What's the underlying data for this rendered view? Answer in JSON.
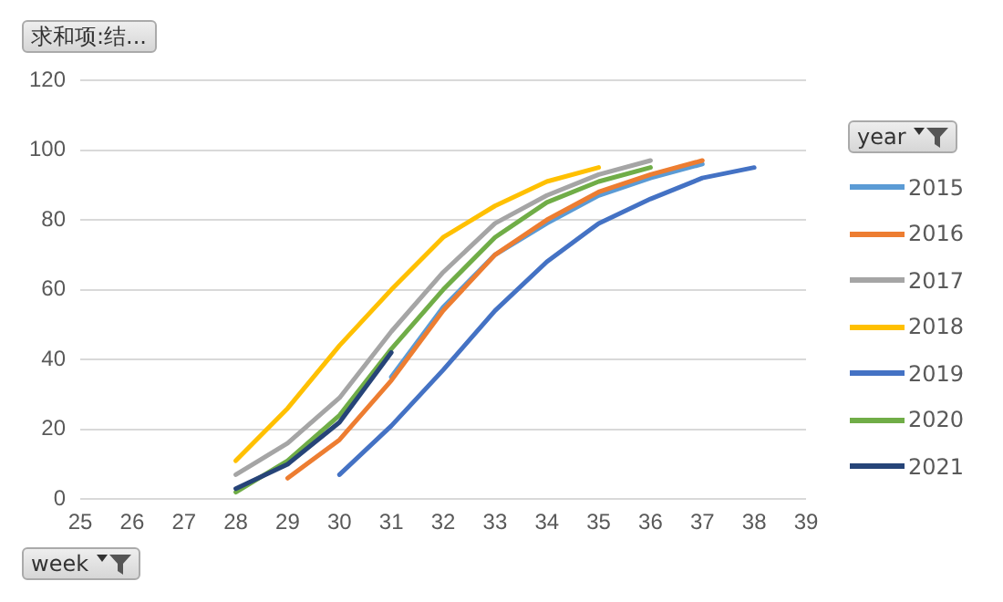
{
  "chart_data": {
    "type": "line",
    "ylabel": "求和项:结...",
    "xlabel": "week",
    "legend_title": "year",
    "categories": [
      "25",
      "26",
      "27",
      "28",
      "29",
      "30",
      "31",
      "32",
      "33",
      "34",
      "35",
      "36",
      "37",
      "38",
      "39"
    ],
    "ylim": [
      0,
      120
    ],
    "yticks": [
      0,
      20,
      40,
      60,
      80,
      100,
      120
    ],
    "grid": "y",
    "legend": "right",
    "marker": "none",
    "line_style": "solid",
    "series": [
      {
        "name": "2015",
        "color": "#5b9bd5",
        "values": [
          null,
          null,
          null,
          null,
          null,
          null,
          35,
          55,
          70,
          79,
          87,
          92,
          96,
          null,
          null
        ]
      },
      {
        "name": "2016",
        "color": "#ed7d31",
        "values": [
          null,
          null,
          null,
          null,
          6,
          17,
          34,
          54,
          70,
          80,
          88,
          93,
          97,
          null,
          null
        ]
      },
      {
        "name": "2017",
        "color": "#a5a5a5",
        "values": [
          null,
          null,
          null,
          7,
          16,
          29,
          48,
          65,
          79,
          87,
          93,
          97,
          null,
          null,
          null
        ]
      },
      {
        "name": "2018",
        "color": "#ffc000",
        "values": [
          null,
          null,
          null,
          11,
          26,
          44,
          60,
          75,
          84,
          91,
          95,
          null,
          null,
          null,
          null
        ]
      },
      {
        "name": "2019",
        "color": "#4472c4",
        "values": [
          null,
          null,
          null,
          null,
          null,
          7,
          21,
          37,
          54,
          68,
          79,
          86,
          92,
          95,
          null
        ]
      },
      {
        "name": "2020",
        "color": "#70ad47",
        "values": [
          null,
          null,
          null,
          2,
          11,
          24,
          43,
          60,
          75,
          85,
          91,
          95,
          null,
          null,
          null
        ]
      },
      {
        "name": "2021",
        "color": "#264478",
        "values": [
          null,
          null,
          null,
          3,
          10,
          22,
          42,
          null,
          null,
          null,
          null,
          null,
          null,
          null,
          null
        ]
      }
    ]
  }
}
